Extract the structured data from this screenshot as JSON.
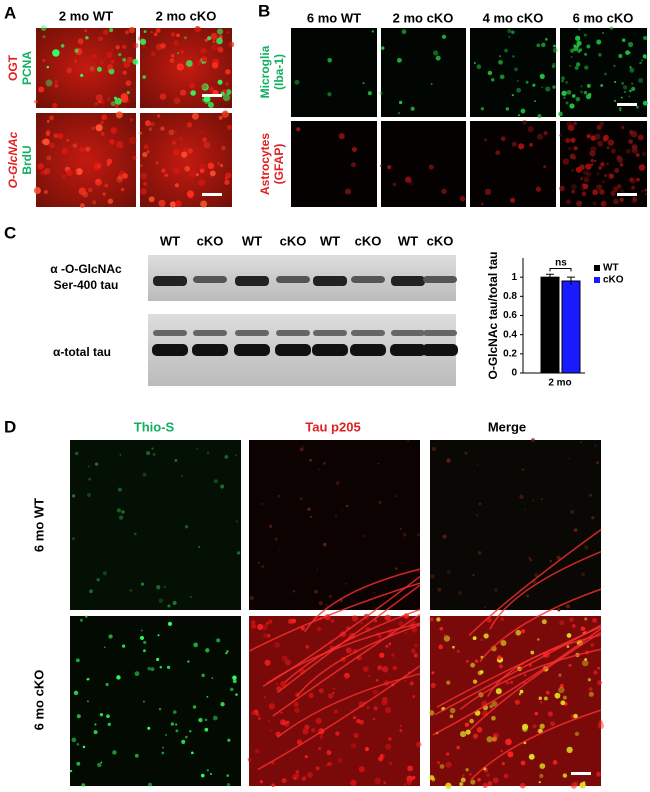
{
  "panels": {
    "a": {
      "letter": "A",
      "columns": [
        "2 mo WT",
        "2 mo cKO"
      ],
      "rows": [
        [
          "OGT",
          "PCNA"
        ],
        [
          "O-GlcNAc",
          "BrdU"
        ]
      ]
    },
    "b": {
      "letter": "B",
      "columns": [
        "6 mo WT",
        "2 mo cKO",
        "4 mo cKO",
        "6 mo cKO"
      ],
      "rows": [
        [
          "Microglia",
          "(Iba-1)"
        ],
        [
          "Astrocytes",
          "(GFAP)"
        ]
      ]
    },
    "c": {
      "letter": "C",
      "lanes": [
        "WT",
        "cKO",
        "WT",
        "cKO",
        "WT",
        "cKO",
        "WT",
        "cKO"
      ],
      "blots": [
        [
          "α -O-GlcNAc",
          "Ser-400 tau"
        ],
        [
          "α-total tau"
        ]
      ]
    },
    "d": {
      "letter": "D",
      "columns": [
        "Thio-S",
        "Tau p205",
        "Merge"
      ],
      "rows": [
        "6 mo WT",
        "6 mo cKO"
      ]
    }
  },
  "chart_data": {
    "type": "bar",
    "ylabel": "O-GlcNAc tau/total tau",
    "categories": [
      "2 mo"
    ],
    "series": [
      {
        "name": "WT",
        "color": "#000000",
        "values": [
          1.0
        ],
        "errors": [
          0.03
        ]
      },
      {
        "name": "cKO",
        "color": "#1a1aff",
        "values": [
          0.96
        ],
        "errors": [
          0.04
        ]
      }
    ],
    "annotation": "ns",
    "ylim": [
      0,
      1.2
    ],
    "yticks": [
      0,
      0.2,
      0.4,
      0.6,
      0.8,
      1
    ]
  }
}
